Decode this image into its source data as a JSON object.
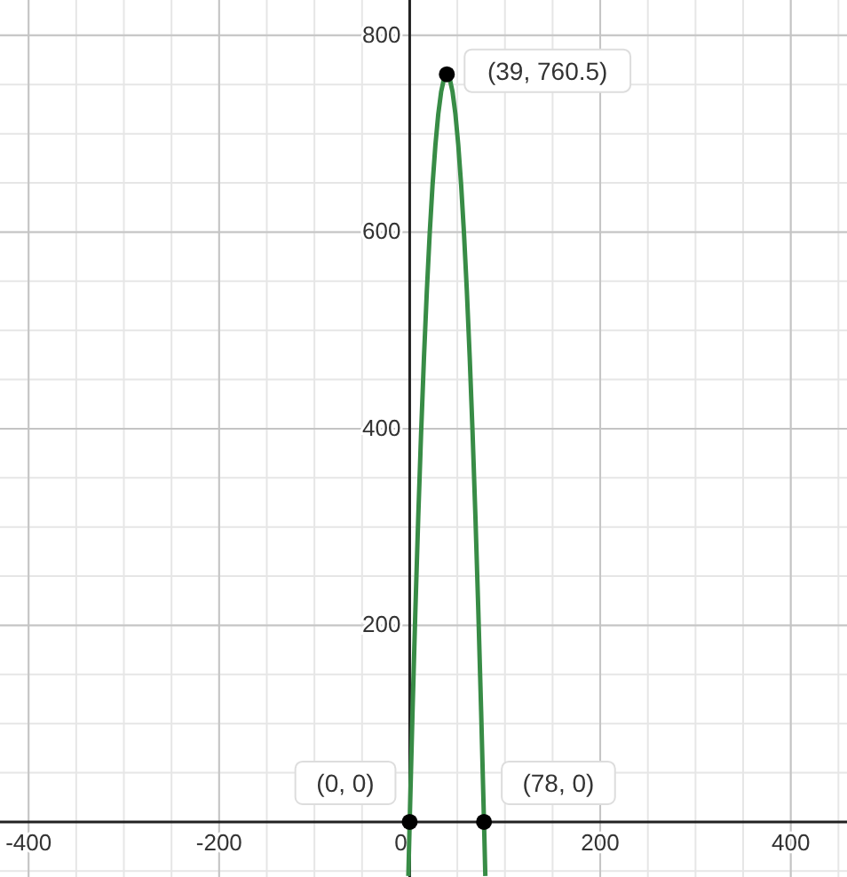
{
  "chart_data": {
    "type": "line",
    "xlim": [
      -430,
      459
    ],
    "ylim": [
      -56,
      836
    ],
    "xticks": [
      -400,
      -200,
      0,
      200,
      400
    ],
    "yticks": [
      200,
      400,
      600,
      800
    ],
    "grid": true,
    "series": [
      {
        "color": "#388c46",
        "x": [
          -1.4,
          0,
          3,
          6,
          9,
          12,
          15,
          18,
          21,
          24,
          27,
          30,
          33,
          36,
          39,
          42,
          45,
          48,
          51,
          54,
          57,
          60,
          63,
          66,
          69,
          72,
          75,
          78,
          79.4
        ],
        "values": [
          -55,
          0,
          112.5,
          216,
          310.5,
          396,
          472.5,
          540,
          598.5,
          648,
          688.5,
          720,
          742.5,
          756,
          760.5,
          756,
          742.5,
          720,
          688.5,
          648,
          598.5,
          540,
          472.5,
          396,
          310.5,
          216,
          112.5,
          0,
          -55
        ]
      },
      {
        "type": "scatter",
        "color": "#000000",
        "marker": "circle",
        "x": [
          0,
          39,
          78
        ],
        "values": [
          0,
          760.5,
          0
        ]
      }
    ],
    "annotations": [
      {
        "text": "(0, 0)",
        "x": 0,
        "y": 0
      },
      {
        "text": "(39, 760.5)",
        "x": 39,
        "y": 760.5
      },
      {
        "text": "(78, 0)",
        "x": 78,
        "y": 0
      }
    ]
  }
}
